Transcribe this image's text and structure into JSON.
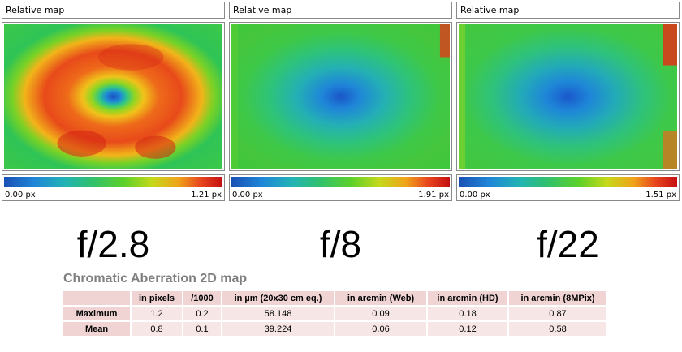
{
  "panels": [
    {
      "title": "Relative map",
      "scale_min": "0.00 px",
      "scale_max": "1.21 px",
      "fstop": "f/2.8"
    },
    {
      "title": "Relative map",
      "scale_min": "0.00 px",
      "scale_max": "1.91 px",
      "fstop": "f/8"
    },
    {
      "title": "Relative map",
      "scale_min": "0.00 px",
      "scale_max": "1.51 px",
      "fstop": "f/22"
    }
  ],
  "table": {
    "title": "Chromatic Aberration 2D map",
    "headers": [
      "",
      "in pixels",
      "/1000",
      "in µm (20x30 cm eq.)",
      "in arcmin (Web)",
      "in arcmin (HD)",
      "in arcmin (8MPix)"
    ],
    "rows": [
      {
        "label": "Maximum",
        "values": [
          "1.2",
          "0.2",
          "58.148",
          "0.09",
          "0.18",
          "0.87"
        ]
      },
      {
        "label": "Mean",
        "values": [
          "0.8",
          "0.1",
          "39.224",
          "0.06",
          "0.12",
          "0.58"
        ]
      }
    ]
  },
  "colors": {
    "accent_header": "#f0d4d4",
    "accent_cell": "#f7e6e6",
    "title_gray": "#7f7f7f"
  }
}
